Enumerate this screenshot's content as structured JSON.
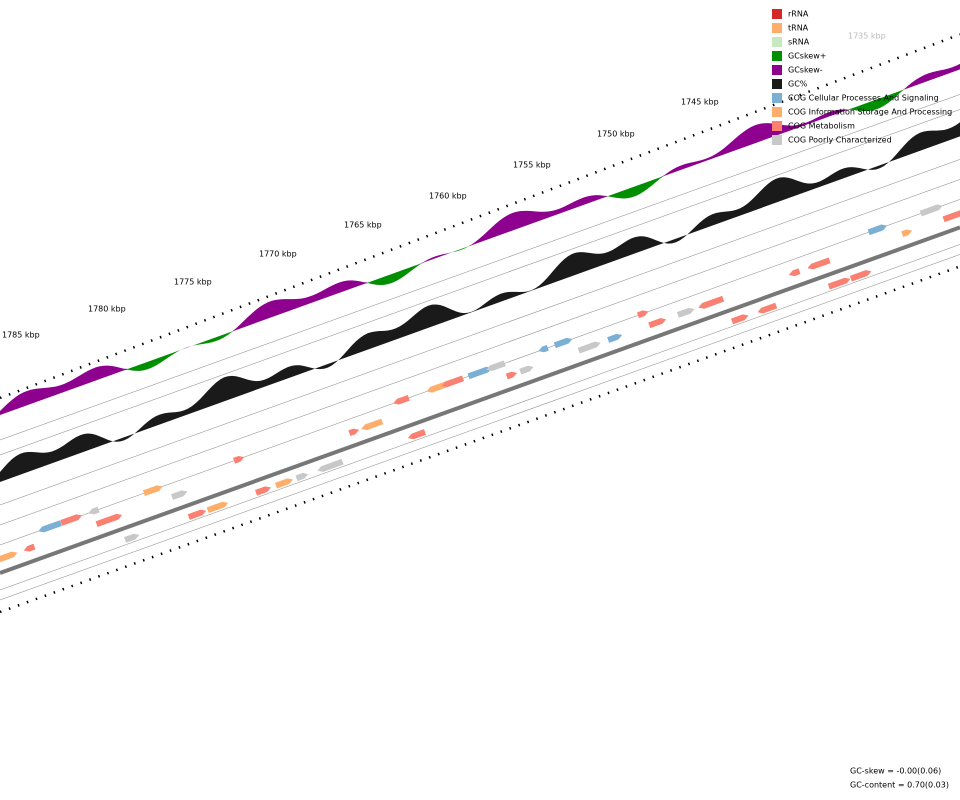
{
  "legend": {
    "items": [
      {
        "label": "rRNA",
        "color": "#d62728"
      },
      {
        "label": "tRNA",
        "color": "#fdae6b"
      },
      {
        "label": "sRNA",
        "color": "#c7e9c0"
      },
      {
        "label": "GCskew+",
        "color": "#008f00"
      },
      {
        "label": "GCskew-",
        "color": "#8e008e"
      },
      {
        "label": "GC%",
        "color": "#1a1a1a"
      },
      {
        "label": "COG Cellular Processes And Signaling",
        "color": "#7bafd4"
      },
      {
        "label": "COG Information Storage And Processing",
        "color": "#fdae6b"
      },
      {
        "label": "COG Metabolism",
        "color": "#fa8072"
      },
      {
        "label": "COG Poorly Characterized",
        "color": "#c8c8c8"
      }
    ]
  },
  "ruler": {
    "labels": [
      "1735 kbp",
      "1745 kbp",
      "1750 kbp",
      "1755 kbp",
      "1760 kbp",
      "1765 kbp",
      "1770 kbp",
      "1775 kbp",
      "1780 kbp",
      "1785 kbp"
    ]
  },
  "footer": {
    "gc_skew": "GC-skew = -0.00(0.06)",
    "gc_content": "GC-content = 0.70(0.03)"
  }
}
